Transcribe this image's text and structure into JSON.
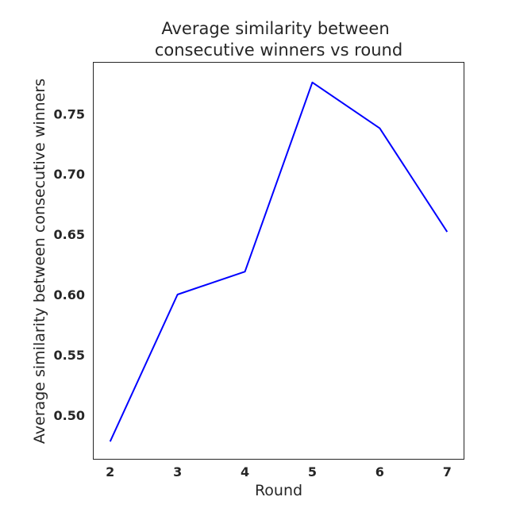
{
  "chart_data": {
    "type": "line",
    "title_lines": [
      "Average similarity between",
      "consecutive winners vs round"
    ],
    "xlabel": "Round",
    "ylabel": "Average similarity between consecutive winners",
    "x": [
      2,
      3,
      4,
      5,
      6,
      7
    ],
    "series": [
      {
        "values": [
          0.478,
          0.6,
          0.619,
          0.776,
          0.738,
          0.652
        ],
        "color": "#0000ff"
      }
    ],
    "xticks": [
      "2",
      "3",
      "4",
      "5",
      "6",
      "7"
    ],
    "yticks": [
      "0.50",
      "0.55",
      "0.60",
      "0.65",
      "0.70",
      "0.75"
    ],
    "xlim": [
      1.75,
      7.25
    ],
    "ylim": [
      0.4633,
      0.7927
    ],
    "grid": false,
    "legend": "none"
  }
}
